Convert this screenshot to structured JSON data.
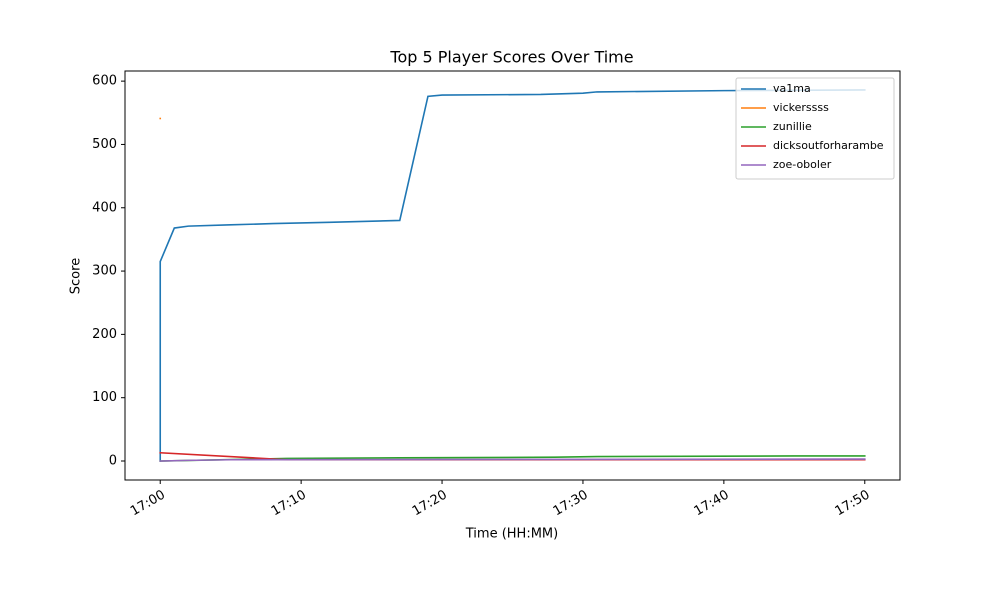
{
  "chart_data": {
    "type": "line",
    "title": "Top 5 Player Scores Over Time",
    "xlabel": "Time (HH:MM)",
    "ylabel": "Score",
    "xlim": [
      "16:57:30",
      "17:52:30"
    ],
    "xticks": [
      "17:00",
      "17:10",
      "17:20",
      "17:30",
      "17:40",
      "17:50"
    ],
    "ylim": [
      -30,
      616
    ],
    "yticks": [
      0,
      100,
      200,
      300,
      400,
      500,
      600
    ],
    "legend": "upper right",
    "series": [
      {
        "name": "va1ma",
        "color": "#1f77b4",
        "x": [
          "17:00",
          "17:00",
          "17:00",
          "17:01",
          "17:02",
          "17:05",
          "17:08",
          "17:12",
          "17:17",
          "17:19",
          "17:20",
          "17:27",
          "17:30",
          "17:31",
          "17:40",
          "17:50"
        ],
        "values": [
          0,
          170,
          315,
          368,
          371,
          373,
          375,
          377,
          380,
          576,
          578,
          579,
          581,
          583,
          585,
          586
        ]
      },
      {
        "name": "vickerssss",
        "color": "#ff7f0e",
        "x": [
          "17:00",
          "17:00"
        ],
        "values": [
          541,
          541
        ]
      },
      {
        "name": "zunillie",
        "color": "#2ca02c",
        "x": [
          "17:00",
          "17:09",
          "17:17",
          "17:28",
          "17:31",
          "17:45",
          "17:50"
        ],
        "values": [
          0,
          4,
          5,
          6,
          7,
          8,
          8
        ]
      },
      {
        "name": "dicksoutforharambe",
        "color": "#d62728",
        "x": [
          "17:00",
          "17:09",
          "17:50"
        ],
        "values": [
          13,
          2,
          2
        ]
      },
      {
        "name": "zoe-oboler",
        "color": "#9467bd",
        "x": [
          "17:00",
          "17:02",
          "17:05",
          "17:50"
        ],
        "values": [
          0,
          1,
          2,
          3
        ]
      }
    ]
  }
}
